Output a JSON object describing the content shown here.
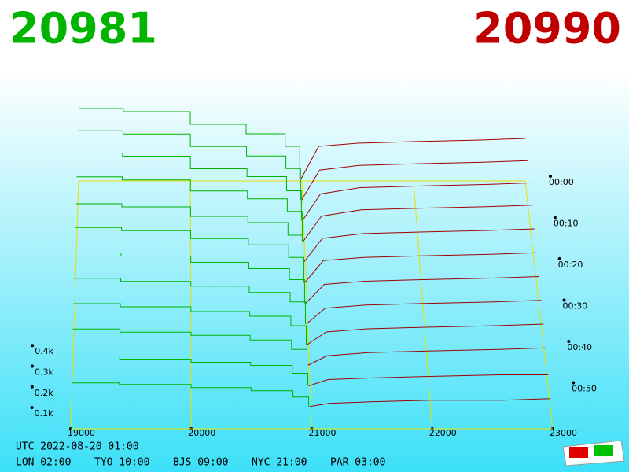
{
  "chart_data": {
    "type": "depth3d",
    "bid_price": "20981",
    "ask_price": "20990",
    "clock": "UTC 2022-08-20 01:00",
    "zones": [
      "LON 02:00",
      "TYO 10:00",
      "BJS 09:00",
      "NYC 21:00",
      "PAR 03:00"
    ],
    "xlim": [
      19000,
      23000
    ],
    "xticks": [
      19000,
      20000,
      21000,
      22000,
      23000
    ],
    "zticks": [
      {
        "value": 0.1,
        "label": "0.1k"
      },
      {
        "value": 0.2,
        "label": "0.2k"
      },
      {
        "value": 0.3,
        "label": "0.3k"
      },
      {
        "value": 0.4,
        "label": "0.4k"
      }
    ],
    "tticks": [
      {
        "value": 0,
        "label": "00:00"
      },
      {
        "value": 10,
        "label": "00:10"
      },
      {
        "value": 20,
        "label": "00:20"
      },
      {
        "value": 30,
        "label": "00:30"
      },
      {
        "value": 40,
        "label": "00:40"
      },
      {
        "value": 50,
        "label": "00:50"
      }
    ],
    "bid_prices": [
      19000,
      19400,
      20000,
      20500,
      20850,
      20981
    ],
    "ask_prices": [
      20990,
      21150,
      21500,
      22000,
      22600,
      23000
    ],
    "bid_color": "#00b400",
    "ask_color": "#a00000",
    "floor_color": "#e8e000",
    "rows": [
      {
        "t": 0,
        "bid": [
          0.46,
          0.44,
          0.36,
          0.3,
          0.22,
          0.01
        ],
        "ask": [
          0.01,
          0.22,
          0.24,
          0.25,
          0.26,
          0.27
        ]
      },
      {
        "t": 5,
        "bid": [
          0.45,
          0.43,
          0.35,
          0.29,
          0.21,
          0.01
        ],
        "ask": [
          0.01,
          0.2,
          0.23,
          0.24,
          0.25,
          0.26
        ]
      },
      {
        "t": 10,
        "bid": [
          0.44,
          0.42,
          0.34,
          0.29,
          0.2,
          0.01
        ],
        "ask": [
          0.01,
          0.18,
          0.22,
          0.23,
          0.24,
          0.25
        ]
      },
      {
        "t": 15,
        "bid": [
          0.42,
          0.4,
          0.33,
          0.28,
          0.2,
          0.01
        ],
        "ask": [
          0.01,
          0.17,
          0.21,
          0.22,
          0.23,
          0.24
        ]
      },
      {
        "t": 20,
        "bid": [
          0.38,
          0.36,
          0.3,
          0.26,
          0.18,
          0.01
        ],
        "ask": [
          0.01,
          0.16,
          0.19,
          0.2,
          0.21,
          0.22
        ]
      },
      {
        "t": 25,
        "bid": [
          0.36,
          0.34,
          0.29,
          0.25,
          0.17,
          0.01
        ],
        "ask": [
          0.01,
          0.15,
          0.17,
          0.18,
          0.19,
          0.2
        ]
      },
      {
        "t": 30,
        "bid": [
          0.33,
          0.31,
          0.27,
          0.23,
          0.16,
          0.01
        ],
        "ask": [
          0.01,
          0.13,
          0.15,
          0.16,
          0.17,
          0.18
        ]
      },
      {
        "t": 35,
        "bid": [
          0.3,
          0.28,
          0.25,
          0.21,
          0.15,
          0.01
        ],
        "ask": [
          0.01,
          0.11,
          0.13,
          0.14,
          0.15,
          0.16
        ]
      },
      {
        "t": 40,
        "bid": [
          0.27,
          0.25,
          0.22,
          0.19,
          0.13,
          0.01
        ],
        "ask": [
          0.01,
          0.09,
          0.11,
          0.12,
          0.13,
          0.14
        ]
      },
      {
        "t": 45,
        "bid": [
          0.24,
          0.22,
          0.2,
          0.17,
          0.11,
          0.01
        ],
        "ask": [
          0.01,
          0.07,
          0.09,
          0.1,
          0.11,
          0.12
        ]
      },
      {
        "t": 50,
        "bid": [
          0.2,
          0.18,
          0.16,
          0.14,
          0.09,
          0.01
        ],
        "ask": [
          0.01,
          0.05,
          0.06,
          0.07,
          0.08,
          0.08
        ]
      },
      {
        "t": 55,
        "bid": [
          0.16,
          0.15,
          0.13,
          0.11,
          0.07,
          0.01
        ],
        "ask": [
          0.01,
          0.03,
          0.04,
          0.05,
          0.05,
          0.06
        ]
      }
    ]
  }
}
